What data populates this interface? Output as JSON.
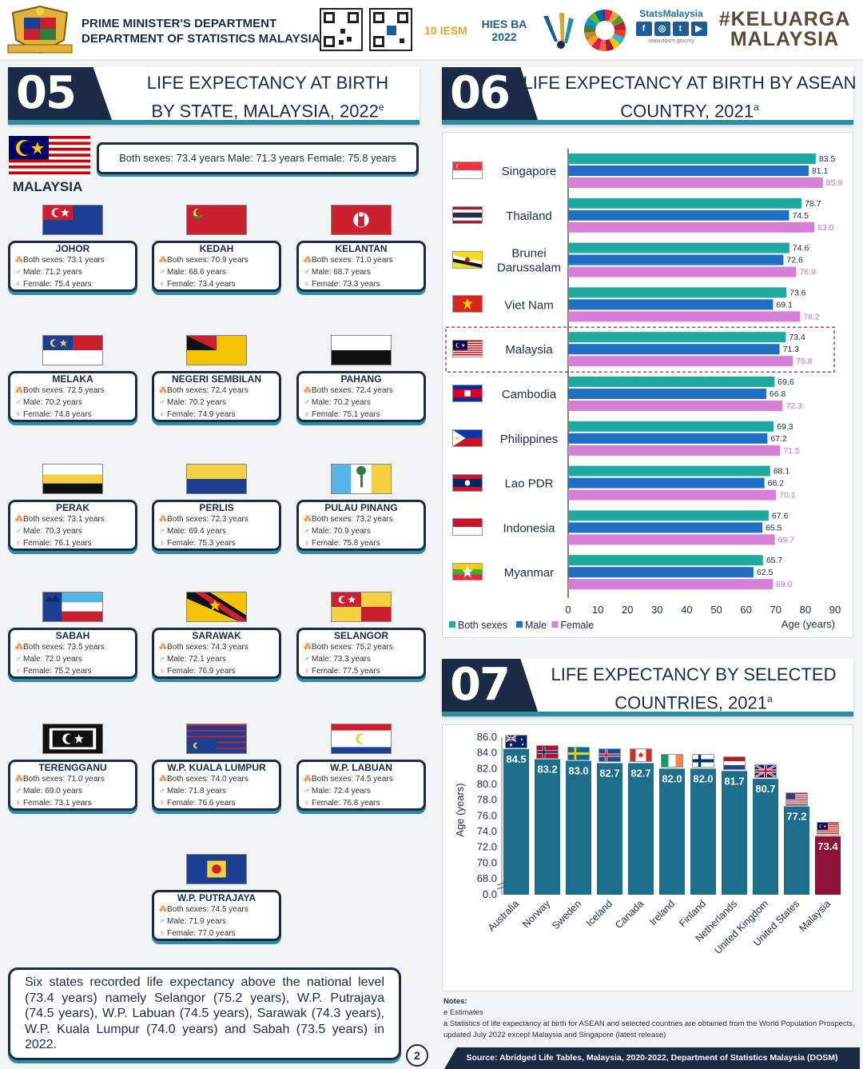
{
  "header": {
    "dept_line1": "PRIME MINISTER'S DEPARTMENT",
    "dept_line2": "DEPARTMENT OF STATISTICS MALAYSIA",
    "logos": [
      "10 IESM",
      "HIES BA 2022"
    ],
    "stats_title": "StatsMalaysia",
    "stats_url": "www.dosm.gov.my",
    "keluarga": "#KELUARGA MALAYSIA"
  },
  "section05": {
    "number": "05",
    "title_line1": "LIFE EXPECTANCY AT BIRTH",
    "title_line2": "BY STATE, MALAYSIA, 2022",
    "title_sup": "e",
    "country_label": "MALAYSIA",
    "summary": "Both sexes: 73.4 years   Male: 71.3 years   Female: 75.8 years",
    "labels": {
      "both": "Both sexes:",
      "male": "Male:",
      "female": "Female:",
      "unit": "years"
    },
    "states": [
      {
        "name": "JOHOR",
        "both": "73.1",
        "male": "71.2",
        "female": "75.4",
        "flag": "johor"
      },
      {
        "name": "KEDAH",
        "both": "70.9",
        "male": "68.6",
        "female": "73.4",
        "flag": "kedah"
      },
      {
        "name": "KELANTAN",
        "both": "71.0",
        "male": "68.7",
        "female": "73.3",
        "flag": "kelantan"
      },
      {
        "name": "MELAKA",
        "both": "72.5",
        "male": "70.2",
        "female": "74.8",
        "flag": "melaka"
      },
      {
        "name": "NEGERI SEMBILAN",
        "both": "72.4",
        "male": "70.2",
        "female": "74.9",
        "flag": "nsembilan"
      },
      {
        "name": "PAHANG",
        "both": "72.4",
        "male": "70.2",
        "female": "75.1",
        "flag": "pahang"
      },
      {
        "name": "PERAK",
        "both": "73.1",
        "male": "70.3",
        "female": "76.1",
        "flag": "perak"
      },
      {
        "name": "PERLIS",
        "both": "72.3",
        "male": "69.4",
        "female": "75.3",
        "flag": "perlis"
      },
      {
        "name": "PULAU PINANG",
        "both": "73.2",
        "male": "70.9",
        "female": "75.8",
        "flag": "penang"
      },
      {
        "name": "SABAH",
        "both": "73.5",
        "male": "72.0",
        "female": "75.2",
        "flag": "sabah"
      },
      {
        "name": "SARAWAK",
        "both": "74.3",
        "male": "72.1",
        "female": "76.9",
        "flag": "sarawak"
      },
      {
        "name": "SELANGOR",
        "both": "75.2",
        "male": "73.3",
        "female": "77.5",
        "flag": "selangor"
      },
      {
        "name": "TERENGGANU",
        "both": "71.0",
        "male": "69.0",
        "female": "73.1",
        "flag": "terengganu"
      },
      {
        "name": "W.P. KUALA LUMPUR",
        "both": "74.0",
        "male": "71.8",
        "female": "76.6",
        "flag": "kl"
      },
      {
        "name": "W.P. LABUAN",
        "both": "74.5",
        "male": "72.4",
        "female": "76.8",
        "flag": "labuan"
      },
      {
        "name": "W.P. PUTRAJAYA",
        "both": "74.5",
        "male": "71.9",
        "female": "77.0",
        "flag": "putrajaya"
      }
    ],
    "text_summary": "Six states recorded life expectancy above the national level (73.4 years) namely Selangor (75.2 years), W.P. Putrajaya (74.5 years), W.P. Labuan (74.5 years), Sarawak (74.3 years), W.P. Kuala Lumpur (74.0 years) and Sabah (73.5 years) in 2022.",
    "page_number": "2"
  },
  "section06": {
    "number": "06",
    "title_line1": "LIFE EXPECTANCY AT BIRTH BY ASEAN",
    "title_line2": "COUNTRY, 2021",
    "title_sup": "a"
  },
  "section07": {
    "number": "07",
    "title_line1": "LIFE EXPECTANCY BY SELECTED",
    "title_line2": "COUNTRIES, 2021",
    "title_sup": "a"
  },
  "chart_data": [
    {
      "type": "bar",
      "orientation": "horizontal",
      "categories": [
        "Singapore",
        "Thailand",
        "Brunei Darussalam",
        "Viet Nam",
        "Malaysia",
        "Cambodia",
        "Philippines",
        "Lao PDR",
        "Indonesia",
        "Myanmar"
      ],
      "series": [
        {
          "name": "Both sexes",
          "values": [
            83.5,
            78.7,
            74.6,
            73.6,
            73.4,
            69.6,
            69.3,
            68.1,
            67.6,
            65.7
          ]
        },
        {
          "name": "Male",
          "values": [
            81.1,
            74.5,
            72.6,
            69.1,
            71.3,
            66.8,
            67.2,
            66.2,
            65.5,
            62.5
          ]
        },
        {
          "name": "Female",
          "values": [
            85.9,
            83.0,
            76.9,
            78.2,
            75.8,
            72.3,
            71.5,
            70.1,
            69.7,
            69.0
          ]
        }
      ],
      "xlabel": "Age (years)",
      "xlim": [
        0,
        90
      ],
      "xticks": [
        0,
        10,
        20,
        30,
        40,
        50,
        60,
        70,
        80,
        90
      ],
      "highlight": "Malaysia",
      "legend": "bottom-left",
      "colors": {
        "Both sexes": "#1eaaa0",
        "Male": "#1f6fc4",
        "Female": "#d77fd8"
      }
    },
    {
      "type": "bar",
      "orientation": "vertical",
      "categories": [
        "Australia",
        "Norway",
        "Sweden",
        "Iceland",
        "Canada",
        "Ireland",
        "Finland",
        "Netherlands",
        "United Kingdom",
        "United States",
        "Malaysia"
      ],
      "values": [
        84.5,
        83.2,
        83.0,
        82.7,
        82.7,
        82.0,
        82.0,
        81.7,
        80.7,
        77.2,
        73.4
      ],
      "value_labels": [
        "84.5",
        "83.2",
        "83.0",
        "82.7",
        "82.7",
        "82.0",
        "82.0",
        "81.7",
        "80.7",
        "77.2",
        "73.4"
      ],
      "ylabel": "Age (years)",
      "yticks": [
        "0.0",
        "68.0",
        "70.0",
        "72.0",
        "74.0",
        "76.0",
        "78.0",
        "80.0",
        "82.0",
        "84.0",
        "86.0"
      ],
      "ylim": [
        66,
        86
      ],
      "axis_break": true,
      "highlight": "Malaysia",
      "colors": {
        "default": "#1d6e8c",
        "highlight": "#8e1238"
      }
    }
  ],
  "notes": {
    "heading": "Notes:",
    "line1": "e Estimates",
    "line2": "a Statistics of life expectancy at birth for ASEAN and selected countries are obtained from the World Population Prospects, updated July 2022 except Malaysia and Singapore (latest release)"
  },
  "source": "Source: Abridged Life Tables, Malaysia, 2020-2022, Department of Statistics Malaysia (DOSM)"
}
